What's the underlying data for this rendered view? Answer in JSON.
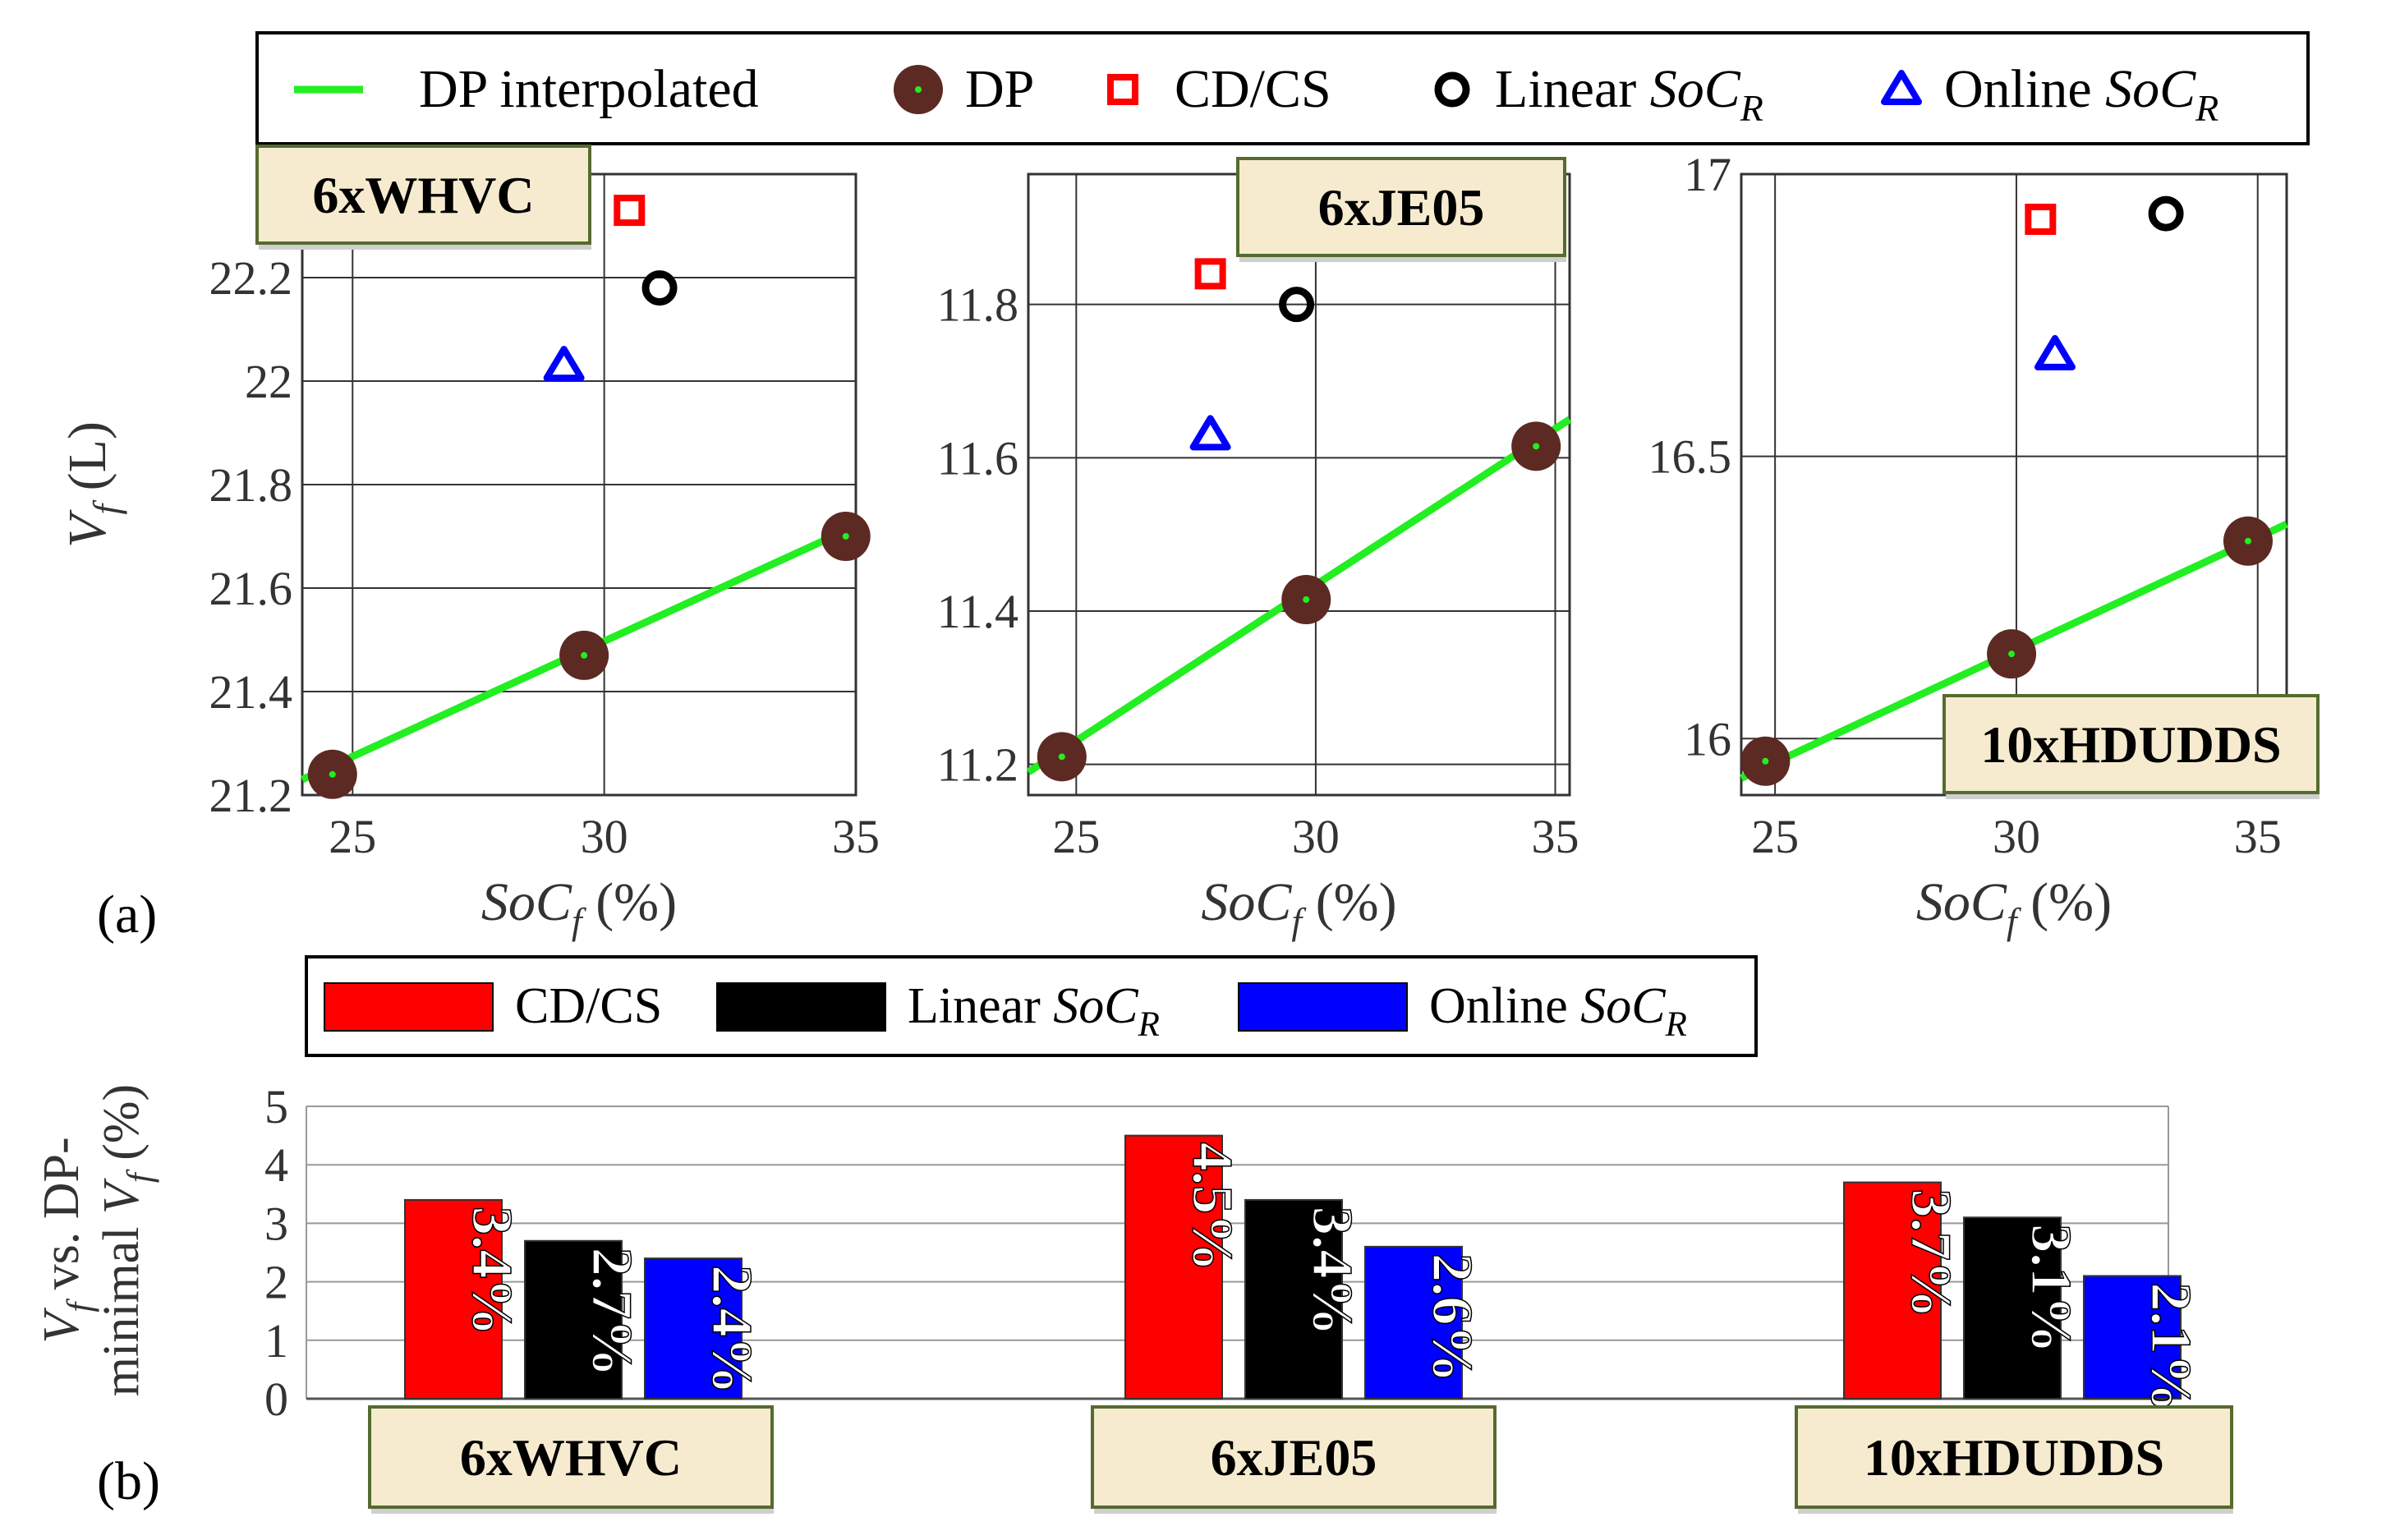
{
  "colors": {
    "dp_line": "#22ee22",
    "dp_marker": "#5c2a22",
    "cdcs": "#ff0000",
    "linear": "#000000",
    "online": "#0000ff",
    "label_box": "#f6ebcf",
    "label_border": "#556b2f"
  },
  "legend_top": {
    "items": [
      {
        "label": "DP interpolated",
        "italic": ""
      },
      {
        "label": "DP",
        "italic": ""
      },
      {
        "label": "CD/CS",
        "italic": ""
      },
      {
        "label": "Linear ",
        "italic": "SoC",
        "sub": "R"
      },
      {
        "label": "Online ",
        "italic": "SoC",
        "sub": "R"
      }
    ]
  },
  "legend_bottom": {
    "items": [
      {
        "label": "CD/CS",
        "italic": ""
      },
      {
        "label": "Linear ",
        "italic": "SoC",
        "sub": "R"
      },
      {
        "label": "Online ",
        "italic": "SoC",
        "sub": "R"
      }
    ]
  },
  "panel_labels": {
    "a": "(a)",
    "b": "(b)"
  },
  "axis_labels": {
    "ylabel_top": "V",
    "ylabel_top_sub": "f",
    "ylabel_top_unit": " (L)",
    "xlabel_main": "SoC",
    "xlabel_sub": "f",
    "xlabel_unit": " (%)",
    "ylabel_bottom_line1": "V",
    "ylabel_bottom_line1_sub": "f",
    "ylabel_bottom_line1_rest": " vs. DP-",
    "ylabel_bottom_line2": "minimal ",
    "ylabel_bottom_line2_v": "V",
    "ylabel_bottom_line2_sub": "f",
    "ylabel_bottom_line2_rest": " (%)"
  },
  "chart_data": [
    {
      "type": "scatter",
      "title": "6xWHVC",
      "xlabel": "SoCf (%)",
      "ylabel": "Vf (L)",
      "xlim": [
        24,
        35
      ],
      "ylim": [
        21.2,
        22.4
      ],
      "xticks": [
        "25",
        "30",
        "35"
      ],
      "xtick_values": [
        25,
        30,
        35
      ],
      "yticks": [
        "21.2",
        "21.4",
        "21.6",
        "21.8",
        "22",
        "22.2"
      ],
      "ytick_values": [
        21.2,
        21.4,
        21.6,
        21.8,
        22.0,
        22.2
      ],
      "series": [
        {
          "name": "DP interpolated",
          "kind": "line",
          "x": [
            24,
            35
          ],
          "y": [
            21.23,
            21.72
          ]
        },
        {
          "name": "DP",
          "kind": "dp",
          "x": [
            24.6,
            29.6,
            34.8
          ],
          "y": [
            21.24,
            21.47,
            21.7
          ]
        },
        {
          "name": "CD/CS",
          "kind": "square",
          "x": [
            30.5
          ],
          "y": [
            22.33
          ]
        },
        {
          "name": "Linear SoCR",
          "kind": "circle",
          "x": [
            31.1
          ],
          "y": [
            22.18
          ]
        },
        {
          "name": "Online SoCR",
          "kind": "triangle",
          "x": [
            29.2
          ],
          "y": [
            22.03
          ]
        }
      ]
    },
    {
      "type": "scatter",
      "title": "6xJE05",
      "xlabel": "SoCf (%)",
      "ylabel": "Vf (L)",
      "xlim": [
        24,
        35.3
      ],
      "ylim": [
        11.16,
        11.97
      ],
      "xticks": [
        "25",
        "30",
        "35"
      ],
      "xtick_values": [
        25,
        30,
        35
      ],
      "yticks": [
        "11.2",
        "11.4",
        "11.6",
        "11.8"
      ],
      "ytick_values": [
        11.2,
        11.4,
        11.6,
        11.8
      ],
      "series": [
        {
          "name": "DP interpolated",
          "kind": "line",
          "x": [
            24,
            35.3
          ],
          "y": [
            11.19,
            11.65
          ]
        },
        {
          "name": "DP",
          "kind": "dp",
          "x": [
            24.7,
            29.8,
            34.6
          ],
          "y": [
            11.21,
            11.415,
            11.615
          ]
        },
        {
          "name": "CD/CS",
          "kind": "square",
          "x": [
            27.8
          ],
          "y": [
            11.84
          ]
        },
        {
          "name": "Linear SoCR",
          "kind": "circle",
          "x": [
            29.6
          ],
          "y": [
            11.8
          ]
        },
        {
          "name": "Online SoCR",
          "kind": "triangle",
          "x": [
            27.8
          ],
          "y": [
            11.63
          ]
        }
      ]
    },
    {
      "type": "scatter",
      "title": "10xHDUDDS",
      "xlabel": "SoCf (%)",
      "ylabel": "Vf (L)",
      "xlim": [
        24.3,
        35.6
      ],
      "ylim": [
        15.9,
        17.0
      ],
      "xticks": [
        "25",
        "30",
        "35"
      ],
      "xtick_values": [
        25,
        30,
        35
      ],
      "yticks": [
        "16",
        "16.5",
        "17"
      ],
      "ytick_values": [
        16.0,
        16.5,
        17.0
      ],
      "series": [
        {
          "name": "DP interpolated",
          "kind": "line",
          "x": [
            24.3,
            35.6
          ],
          "y": [
            15.93,
            16.38
          ]
        },
        {
          "name": "DP",
          "kind": "dp",
          "x": [
            24.8,
            29.9,
            34.8
          ],
          "y": [
            15.96,
            16.15,
            16.35
          ]
        },
        {
          "name": "CD/CS",
          "kind": "square",
          "x": [
            30.5
          ],
          "y": [
            16.92
          ]
        },
        {
          "name": "Linear SoCR",
          "kind": "circle",
          "x": [
            33.1
          ],
          "y": [
            16.93
          ]
        },
        {
          "name": "Online SoCR",
          "kind": "triangle",
          "x": [
            30.8
          ],
          "y": [
            16.68
          ]
        }
      ]
    },
    {
      "type": "bar",
      "title": "",
      "ylabel": "Vf vs. DP-minimal Vf (%)",
      "ylim": [
        0,
        5
      ],
      "yticks": [
        "0",
        "1",
        "2",
        "3",
        "4",
        "5"
      ],
      "ytick_values": [
        0,
        1,
        2,
        3,
        4,
        5
      ],
      "categories": [
        "6xWHVC",
        "6xJE05",
        "10xHDUDDS"
      ],
      "series": [
        {
          "name": "CD/CS",
          "values": [
            3.4,
            4.5,
            3.7
          ],
          "labels": [
            "3.4%",
            "4.5%",
            "3.7%"
          ]
        },
        {
          "name": "Linear SoCR",
          "values": [
            2.7,
            3.4,
            3.1
          ],
          "labels": [
            "2.7%",
            "3.4%",
            "3.1%"
          ]
        },
        {
          "name": "Online SoCR",
          "values": [
            2.4,
            2.6,
            2.1
          ],
          "labels": [
            "2.4%",
            "2.6%",
            "2.1%"
          ]
        }
      ]
    }
  ]
}
